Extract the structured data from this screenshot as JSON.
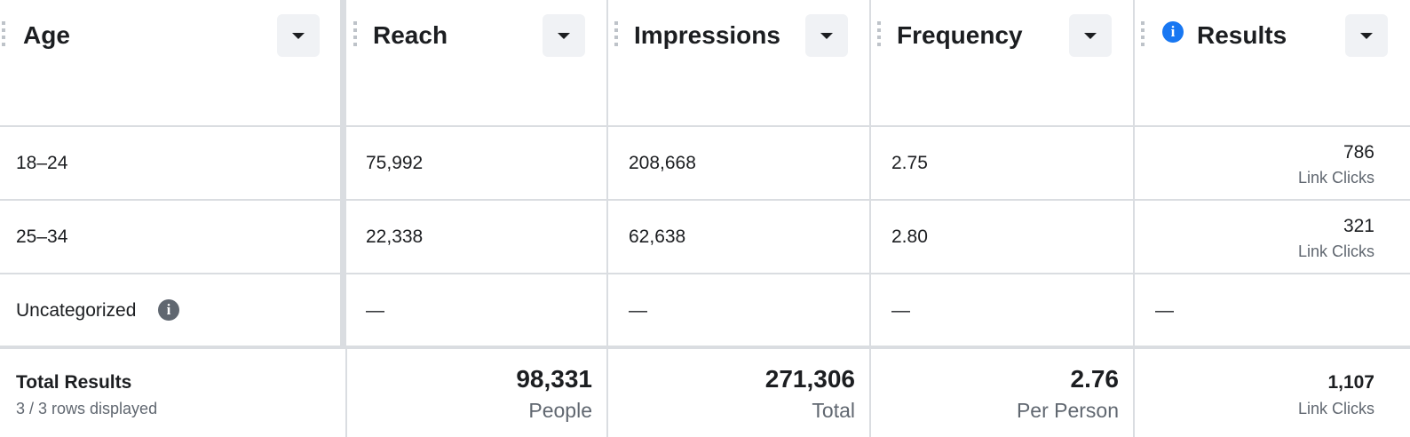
{
  "header": {
    "columns": [
      "Age",
      "Reach",
      "Impressions",
      "Frequency",
      "Results"
    ]
  },
  "table": {
    "rows": [
      {
        "cells": [
          "18–24",
          "75,992",
          "208,668",
          "2.75"
        ],
        "result": {
          "value": "786",
          "unit": "Link Clicks"
        }
      },
      {
        "cells": [
          "25–34",
          "22,338",
          "62,638",
          "2.80"
        ],
        "result": {
          "value": "321",
          "unit": "Link Clicks"
        }
      },
      {
        "cells": [
          "Uncategorized",
          "—",
          "—",
          "—"
        ],
        "result": {
          "value": "—"
        }
      }
    ]
  },
  "totals": {
    "label": "Total Results",
    "sub": "3 / 3 rows displayed",
    "cells": [
      {
        "value": "98,331",
        "unit": "People"
      },
      {
        "value": "271,306",
        "unit": "Total"
      },
      {
        "value": "2.76",
        "unit": "Per Person"
      }
    ],
    "result": {
      "value": "1,107",
      "unit": "Link Clicks"
    }
  }
}
